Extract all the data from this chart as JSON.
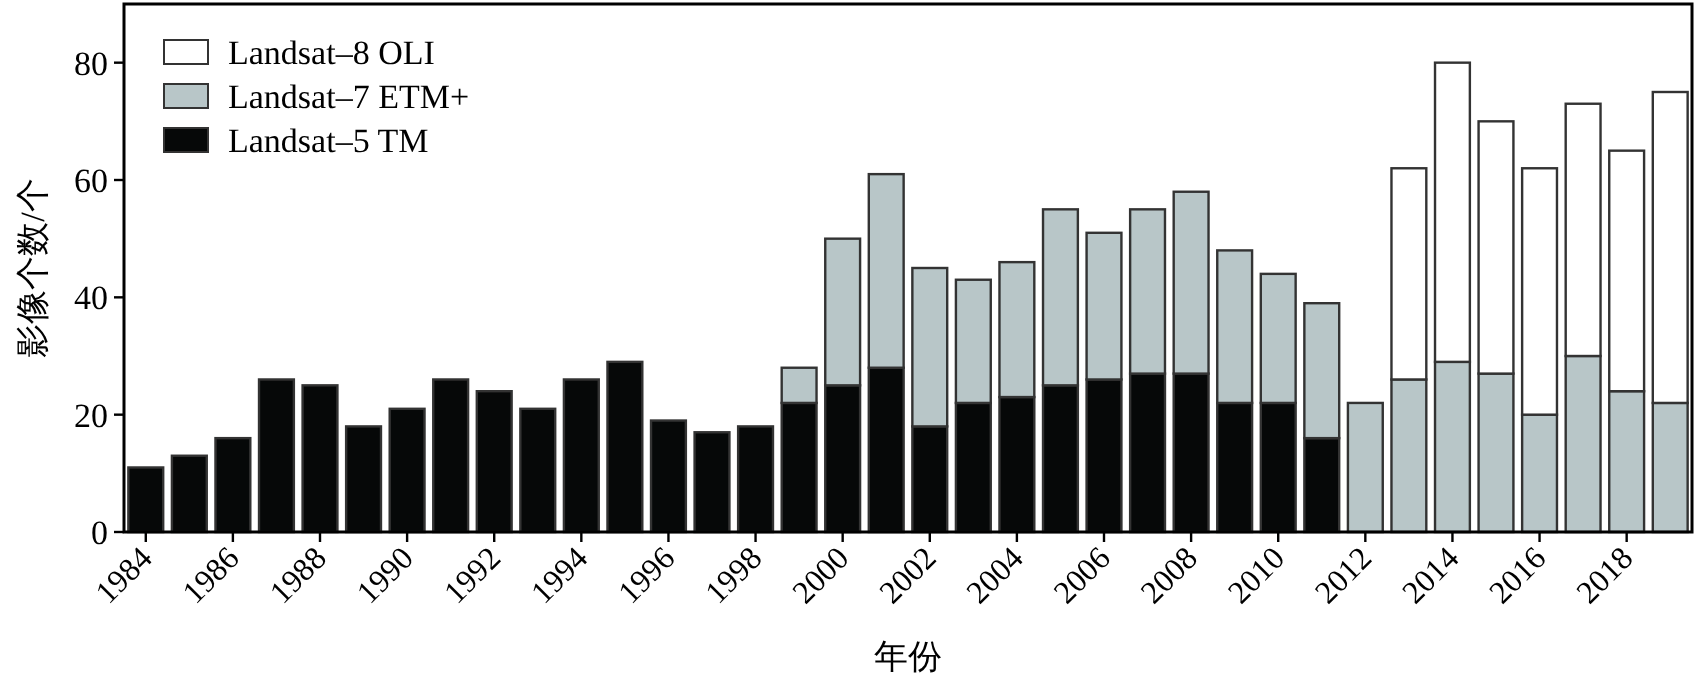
{
  "chart_data": {
    "type": "bar",
    "stacked": true,
    "xlabel": "年份",
    "ylabel": "影像个数/个",
    "categories": [
      "1984",
      null,
      "1986",
      null,
      "1988",
      null,
      "1990",
      null,
      "1992",
      null,
      "1994",
      null,
      "1996",
      null,
      "1998",
      null,
      "2000",
      null,
      "2002",
      null,
      "2004",
      null,
      "2006",
      null,
      "2008",
      null,
      "2010",
      null,
      "2012",
      null,
      "2014",
      null,
      "2016",
      null,
      "2018",
      null
    ],
    "series": [
      {
        "name": "Landsat–5 TM",
        "color": "#060808",
        "values": [
          11,
          13,
          16,
          26,
          25,
          18,
          21,
          26,
          24,
          21,
          26,
          29,
          19,
          17,
          18,
          22,
          25,
          28,
          18,
          22,
          23,
          25,
          26,
          27,
          27,
          22,
          22,
          16,
          null,
          null,
          null,
          null,
          null,
          null,
          null,
          null
        ]
      },
      {
        "name": "Landsat–7 ETM+",
        "color": "#b8c6c8",
        "values": [
          null,
          null,
          null,
          null,
          null,
          null,
          null,
          null,
          null,
          null,
          null,
          null,
          null,
          null,
          null,
          6,
          25,
          33,
          27,
          21,
          23,
          30,
          25,
          28,
          31,
          26,
          22,
          23,
          22,
          26,
          29,
          27,
          20,
          30,
          24,
          22
        ]
      },
      {
        "name": "Landsat–8 OLI",
        "color": "#ffffff",
        "values": [
          null,
          null,
          null,
          null,
          null,
          null,
          null,
          null,
          null,
          null,
          null,
          null,
          null,
          null,
          null,
          null,
          null,
          null,
          null,
          null,
          null,
          null,
          null,
          null,
          null,
          null,
          null,
          null,
          null,
          36,
          51,
          43,
          42,
          43,
          41,
          53
        ]
      }
    ],
    "ylim": [
      0,
      90
    ],
    "yticks": [
      0,
      20,
      40,
      60,
      80
    ],
    "legend": "top left"
  }
}
